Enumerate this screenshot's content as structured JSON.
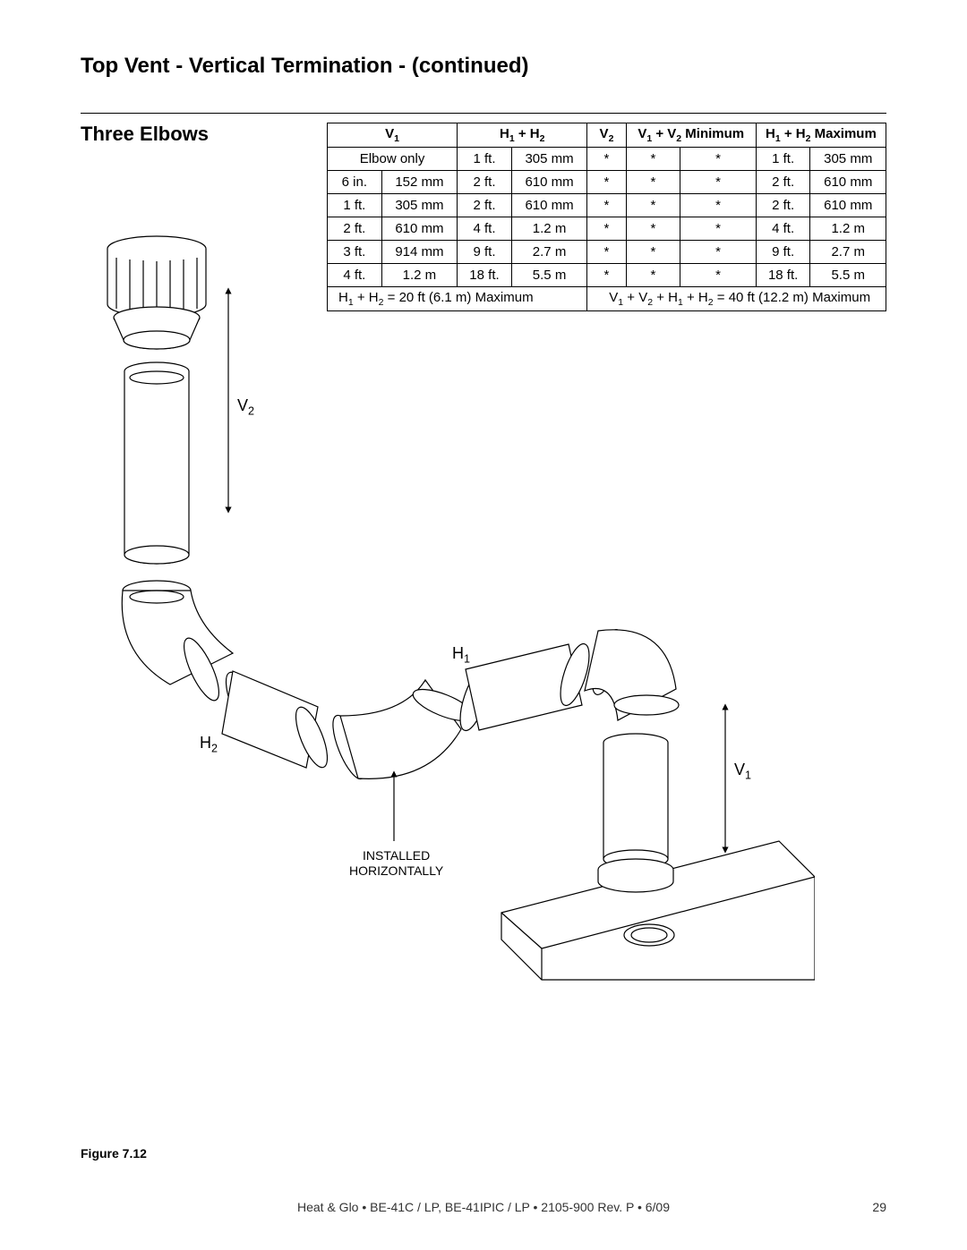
{
  "title": "Top Vent - Vertical Termination  - (continued)",
  "subheading": "Three Elbows",
  "table": {
    "head": {
      "v1": "V",
      "v1_sub": "1",
      "h1h2": "H",
      "h1h2_mid": " + H",
      "h1h2_sub1": "1",
      "h1h2_sub2": "2",
      "v2": "V",
      "v2_sub": "2",
      "v1v2min_a": "V",
      "v1v2min_s1": "1",
      "v1v2min_b": " + V",
      "v1v2min_s2": "2",
      "v1v2min_c": " Minimum",
      "h1h2max_a": "H",
      "h1h2max_s1": "1",
      "h1h2max_b": " + H",
      "h1h2max_s2": "2",
      "h1h2max_c": " Maximum"
    },
    "rows": [
      {
        "c0": "Elbow only",
        "c1": "",
        "c2": "1 ft.",
        "c3": "305 mm",
        "c4": "*",
        "c5": "*",
        "c6": "*",
        "c7": "1 ft.",
        "c8": "305 mm"
      },
      {
        "c0": "6 in.",
        "c1": "152 mm",
        "c2": "2 ft.",
        "c3": "610 mm",
        "c4": "*",
        "c5": "*",
        "c6": "*",
        "c7": "2 ft.",
        "c8": "610 mm"
      },
      {
        "c0": "1 ft.",
        "c1": "305 mm",
        "c2": "2 ft.",
        "c3": "610 mm",
        "c4": "*",
        "c5": "*",
        "c6": "*",
        "c7": "2 ft.",
        "c8": "610 mm"
      },
      {
        "c0": "2 ft.",
        "c1": "610 mm",
        "c2": "4 ft.",
        "c3": "1.2 m",
        "c4": "*",
        "c5": "*",
        "c6": "*",
        "c7": "4 ft.",
        "c8": "1.2 m"
      },
      {
        "c0": "3 ft.",
        "c1": "914 mm",
        "c2": "9 ft.",
        "c3": "2.7 m",
        "c4": "*",
        "c5": "*",
        "c6": "*",
        "c7": "9 ft.",
        "c8": "2.7 m"
      },
      {
        "c0": "4 ft.",
        "c1": "1.2 m",
        "c2": "18 ft.",
        "c3": "5.5 m",
        "c4": "*",
        "c5": "*",
        "c6": "*",
        "c7": "18 ft.",
        "c8": "5.5 m"
      }
    ],
    "footer_left_a": "H",
    "footer_left_s1": "1",
    "footer_left_b": " + H",
    "footer_left_s2": "2",
    "footer_left_c": " = 20 ft (6.1 m) Maximum",
    "footer_right_a": "V",
    "footer_right_s1": "1",
    "footer_right_b": " + V",
    "footer_right_s2": "2",
    "footer_right_c": " + H",
    "footer_right_s3": "1",
    "footer_right_d": " + H",
    "footer_right_s4": "2",
    "footer_right_e": " = 40 ft (12.2 m) Maximum"
  },
  "labels": {
    "v2": "V",
    "v2_sub": "2",
    "h1": "H",
    "h1_sub": "1",
    "h2": "H",
    "h2_sub": "2",
    "v1": "V",
    "v1_sub": "1",
    "installed_l1": "INSTALLED",
    "installed_l2": "HORIZONTALLY"
  },
  "figure_label": "Figure 7.12",
  "footer_text": "Heat & Glo  •  BE-41C / LP,   BE-41IPIC / LP  •  2105-900  Rev. P  •  6/09",
  "page_number": "29",
  "colors": {
    "stroke": "#000000",
    "fill": "#ffffff",
    "shade": "#f2f2f2"
  }
}
